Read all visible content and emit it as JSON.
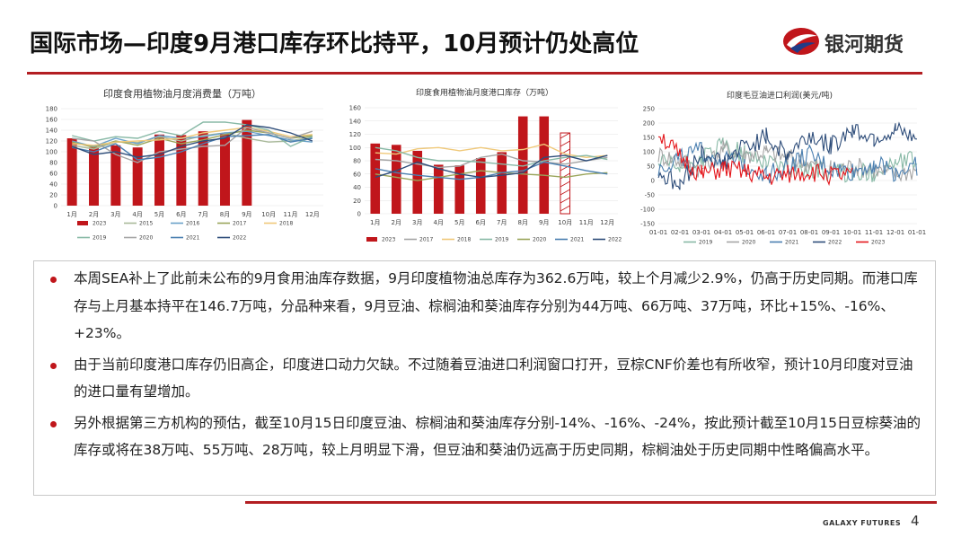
{
  "header": {
    "title": "国际市场—印度9月港口库存环比持平，10月预计仍处高位",
    "logo_text": "银河期货"
  },
  "charts": [
    {
      "title": "印度食用植物油月度消费量（万吨）",
      "y_ticks": [
        "180",
        "160",
        "140",
        "120",
        "100",
        "80",
        "60",
        "40",
        "20",
        "0"
      ],
      "x_ticks": [
        "1月",
        "2月",
        "3月",
        "4月",
        "5月",
        "6月",
        "7月",
        "8月",
        "9月",
        "10月",
        "11月",
        "12月"
      ],
      "legend": [
        "2023",
        "2015",
        "2016",
        "2017",
        "2018",
        "2019",
        "2020",
        "2021",
        "2022"
      ]
    },
    {
      "title": "印度食用植物油月度港口库存（万吨）",
      "y_ticks": [
        "160",
        "140",
        "120",
        "100",
        "80",
        "60",
        "40",
        "20",
        "0"
      ],
      "x_ticks": [
        "1月",
        "2月",
        "3月",
        "4月",
        "5月",
        "6月",
        "7月",
        "8月",
        "9月",
        "10月",
        "11月",
        "12月"
      ],
      "legend": [
        "2023",
        "2017",
        "2018",
        "2019",
        "2020",
        "2021",
        "2022"
      ]
    },
    {
      "title": "印度毛豆油进口利润(美元/吨)",
      "y_ticks": [
        "250",
        "200",
        "150",
        "100",
        "50",
        "0",
        "-50",
        "-100",
        "-150"
      ],
      "x_ticks": [
        "01-01",
        "02-01",
        "03-01",
        "04-01",
        "05-01",
        "06-01",
        "07-01",
        "08-01",
        "09-01",
        "10-01",
        "11-01",
        "12-01",
        "01-01"
      ],
      "legend": [
        "2019",
        "2020",
        "2021",
        "2022",
        "2023"
      ]
    }
  ],
  "chart_data": [
    {
      "type": "bar",
      "title": "印度食用植物油月度消费量（万吨）",
      "categories": [
        "1月",
        "2月",
        "3月",
        "4月",
        "5月",
        "6月",
        "7月",
        "8月",
        "9月",
        "10月",
        "11月",
        "12月"
      ],
      "ylim": [
        0,
        180
      ],
      "series": [
        {
          "name": "2023",
          "type": "bar",
          "color": "#c0161b",
          "values": [
            125,
            108,
            112,
            108,
            132,
            131,
            138,
            133,
            159,
            null,
            null,
            null
          ]
        },
        {
          "name": "2015",
          "type": "line",
          "color": "#a9b99a",
          "values": [
            112,
            105,
            118,
            117,
            128,
            120,
            130,
            135,
            125,
            118,
            120,
            128
          ]
        },
        {
          "name": "2016",
          "type": "line",
          "color": "#6aa1c9",
          "values": [
            120,
            110,
            125,
            115,
            130,
            125,
            128,
            135,
            138,
            130,
            122,
            118
          ]
        },
        {
          "name": "2017",
          "type": "line",
          "color": "#9aa55a",
          "values": [
            118,
            108,
            120,
            112,
            125,
            115,
            122,
            132,
            140,
            135,
            125,
            130
          ]
        },
        {
          "name": "2018",
          "type": "line",
          "color": "#f0c97a",
          "values": [
            115,
            112,
            118,
            120,
            122,
            125,
            135,
            140,
            145,
            138,
            128,
            132
          ]
        },
        {
          "name": "2019",
          "type": "line",
          "color": "#88b9a6",
          "values": [
            130,
            120,
            128,
            125,
            138,
            130,
            155,
            155,
            150,
            140,
            110,
            128
          ]
        },
        {
          "name": "2020",
          "type": "line",
          "color": "#a5a5a5",
          "values": [
            125,
            120,
            95,
            80,
            100,
            105,
            110,
            112,
            145,
            135,
            125,
            138
          ]
        },
        {
          "name": "2021",
          "type": "line",
          "color": "#4a7fb0",
          "values": [
            108,
            100,
            115,
            85,
            90,
            100,
            115,
            128,
            130,
            132,
            118,
            125
          ]
        },
        {
          "name": "2022",
          "type": "line",
          "color": "#2e4d7a",
          "values": [
            110,
            95,
            100,
            90,
            95,
            110,
            120,
            125,
            150,
            145,
            135,
            120
          ]
        }
      ]
    },
    {
      "type": "bar",
      "title": "印度食用植物油月度港口库存（万吨）",
      "categories": [
        "1月",
        "2月",
        "3月",
        "4月",
        "5月",
        "6月",
        "7月",
        "8月",
        "9月",
        "10月",
        "11月",
        "12月"
      ],
      "ylim": [
        0,
        160
      ],
      "series": [
        {
          "name": "2023",
          "type": "bar",
          "color": "#c0161b",
          "values": [
            106,
            104,
            95,
            74,
            73,
            84,
            93,
            147,
            147,
            122,
            null,
            null
          ]
        },
        {
          "name": "2017",
          "type": "line",
          "color": "#a5a5a5",
          "values": [
            82,
            80,
            75,
            70,
            72,
            85,
            90,
            80,
            78,
            75,
            80,
            85
          ]
        },
        {
          "name": "2018",
          "type": "line",
          "color": "#f0c97a",
          "values": [
            92,
            90,
            98,
            100,
            95,
            100,
            95,
            97,
            105,
            90,
            85,
            88
          ]
        },
        {
          "name": "2019",
          "type": "line",
          "color": "#88b9a6",
          "values": [
            100,
            95,
            85,
            80,
            80,
            78,
            75,
            72,
            80,
            85,
            88,
            82
          ]
        },
        {
          "name": "2020",
          "type": "line",
          "color": "#9aa55a",
          "values": [
            60,
            55,
            50,
            55,
            60,
            65,
            62,
            60,
            58,
            55,
            60,
            62
          ]
        },
        {
          "name": "2021",
          "type": "line",
          "color": "#4a7fb0",
          "values": [
            68,
            62,
            58,
            55,
            52,
            55,
            62,
            65,
            78,
            72,
            65,
            60
          ]
        },
        {
          "name": "2022",
          "type": "line",
          "color": "#2e4d7a",
          "values": [
            55,
            65,
            78,
            68,
            60,
            55,
            58,
            62,
            85,
            88,
            80,
            88
          ]
        }
      ]
    },
    {
      "type": "line",
      "title": "印度毛豆油进口利润(美元/吨)",
      "x_categories": [
        "01-01",
        "02-01",
        "03-01",
        "04-01",
        "05-01",
        "06-01",
        "07-01",
        "08-01",
        "09-01",
        "10-01",
        "11-01",
        "12-01",
        "01-01"
      ],
      "ylim": [
        -150,
        250
      ],
      "series": [
        {
          "name": "2019",
          "color": "#88b9a6",
          "values": [
            60,
            40,
            80,
            120,
            90,
            70,
            50,
            40,
            30,
            20,
            30,
            60,
            70
          ]
        },
        {
          "name": "2020",
          "color": "#a5a5a5",
          "values": [
            90,
            70,
            40,
            110,
            90,
            100,
            80,
            60,
            40,
            50,
            40,
            20,
            40
          ]
        },
        {
          "name": "2021",
          "color": "#4a7fb0",
          "values": [
            40,
            80,
            100,
            70,
            60,
            20,
            50,
            90,
            40,
            30,
            60,
            30,
            50
          ]
        },
        {
          "name": "2022",
          "color": "#2e4d7a",
          "values": [
            30,
            -20,
            100,
            60,
            120,
            150,
            90,
            160,
            120,
            180,
            150,
            170,
            140
          ]
        },
        {
          "name": "2023",
          "color": "#e4161b",
          "values": [
            170,
            80,
            20,
            40,
            30,
            10,
            20,
            30,
            20,
            10,
            null,
            null,
            null
          ]
        }
      ]
    }
  ],
  "bullets": [
    {
      "text": "本周SEA补上了此前未公布的9月食用油库存数据，9月印度植物油总库存为362.6万吨，较上个月减少2.9%，仍高于历史同期。而港口库存与上月基本持平在146.7万吨，分品种来看，9月豆油、棕榈油和葵油库存分别为44万吨、66万吨、37万吨，环比+15%、-16%、+23%。"
    },
    {
      "text": "由于当前印度港口库存仍旧高企，印度进口动力欠缺。不过随着豆油进口利润窗口打开，豆棕CNF价差也有所收窄，预计10月印度对豆油的进口量有望增加。"
    },
    {
      "text": "另外根据第三方机构的预估，截至10月15日印度豆油、棕榈油和葵油库存分别-14%、-16%、-24%，按此预计截至10月15日豆棕葵油的库存或将在38万吨、55万吨、28万吨，较上月明显下滑，但豆油和葵油仍远高于历史同期，棕榈油处于历史同期中性略偏高水平。"
    }
  ],
  "footer": {
    "brand": "GALAXY FUTURES",
    "page": "4"
  },
  "colors": {
    "accent_red": "#b31e22",
    "bullet_red": "#c0161b"
  },
  "icons": {
    "logo": "galaxy-futures-logo-icon",
    "bullet": "bullet-dot-icon"
  }
}
